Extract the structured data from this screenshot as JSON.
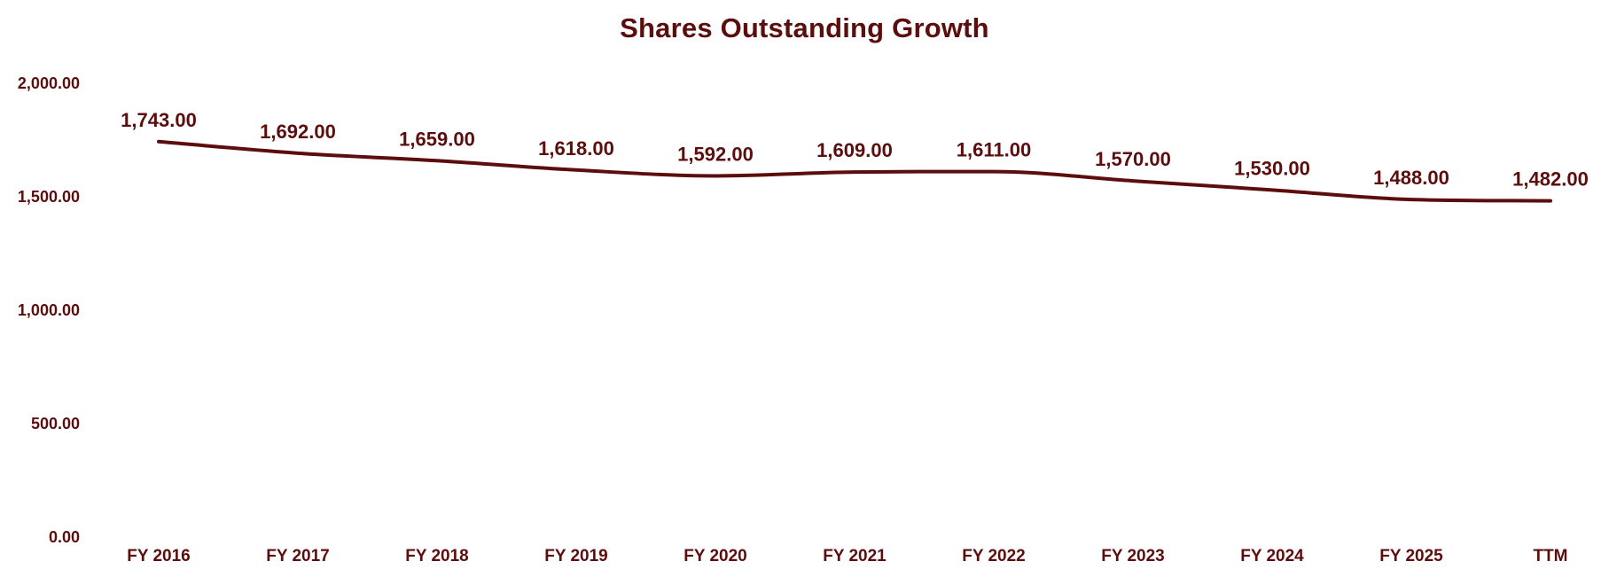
{
  "chart_data": {
    "type": "line",
    "title": "Shares Outstanding Growth",
    "xlabel": "",
    "ylabel": "",
    "categories": [
      "FY 2016",
      "FY 2017",
      "FY 2018",
      "FY 2019",
      "FY 2020",
      "FY 2021",
      "FY 2022",
      "FY 2023",
      "FY 2024",
      "FY 2025",
      "TTM"
    ],
    "values": [
      1743.0,
      1692.0,
      1659.0,
      1618.0,
      1592.0,
      1609.0,
      1611.0,
      1570.0,
      1530.0,
      1488.0,
      1482.0
    ],
    "data_labels": [
      "1,743.00",
      "1,692.00",
      "1,659.00",
      "1,618.00",
      "1,592.00",
      "1,609.00",
      "1,611.00",
      "1,570.00",
      "1,530.00",
      "1,488.00",
      "1,482.00"
    ],
    "ylim": [
      0,
      2000
    ],
    "y_ticks": [
      0,
      500,
      1000,
      1500,
      2000
    ],
    "y_tick_labels": [
      "0.00",
      "500.00",
      "1,000.00",
      "1,500.00",
      "2,000.00"
    ],
    "grid": false,
    "legend": "none",
    "line_style": "smooth",
    "colors": {
      "line": "#5c0d0d",
      "text": "#5c0d0d",
      "background": "#ffffff"
    }
  }
}
